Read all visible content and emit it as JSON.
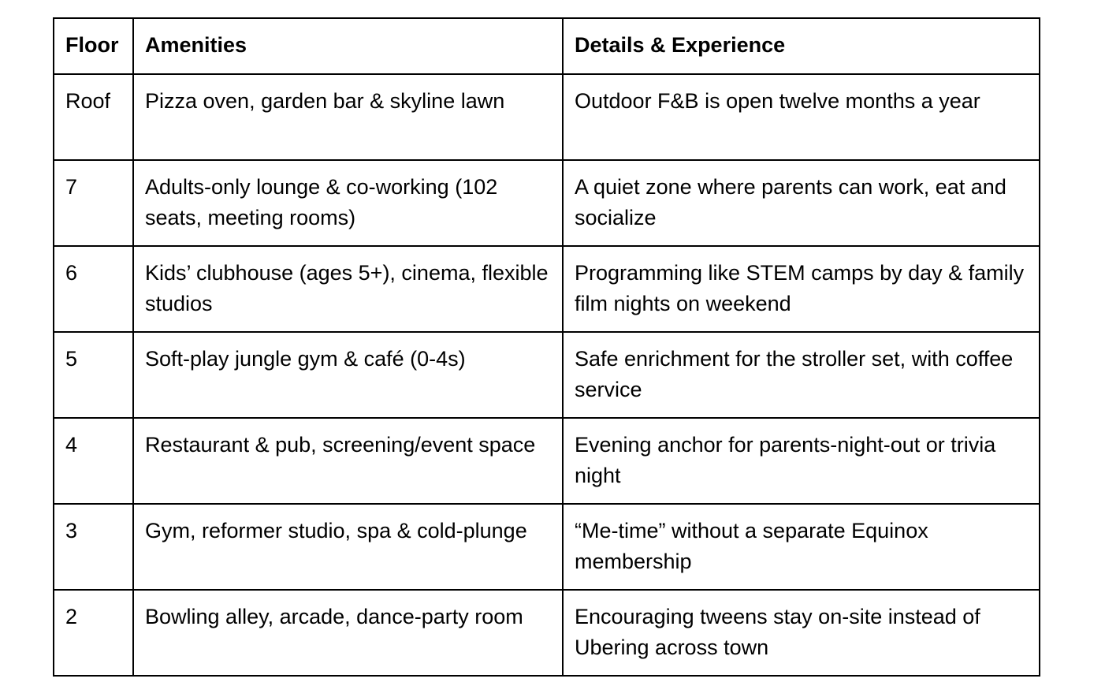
{
  "table": {
    "headers": [
      "Floor",
      "Amenities",
      "Details & Experience"
    ],
    "rows": [
      [
        "Roof",
        "Pizza oven, garden bar & skyline lawn",
        "Outdoor F&B is open twelve months a year"
      ],
      [
        "7",
        "Adults-only lounge & co-working (102 seats, meeting rooms)",
        "A quiet zone where parents can work, eat and socialize"
      ],
      [
        "6",
        "Kids’ clubhouse (ages 5+), cinema, flexible studios",
        "Programming like STEM camps by day & family film nights on weekend"
      ],
      [
        "5",
        "Soft-play jungle gym & café (0-4s)",
        "Safe enrichment for the stroller set, with coffee service"
      ],
      [
        "4",
        "Restaurant & pub, screening/event space",
        "Evening anchor for parents-night-out or trivia night"
      ],
      [
        "3",
        "Gym, reformer studio, spa & cold-plunge",
        "“Me-time” without a separate Equinox membership"
      ],
      [
        "2",
        "Bowling alley, arcade, dance-party room",
        "Encouraging tweens stay on-site instead of Ubering across town"
      ]
    ]
  }
}
